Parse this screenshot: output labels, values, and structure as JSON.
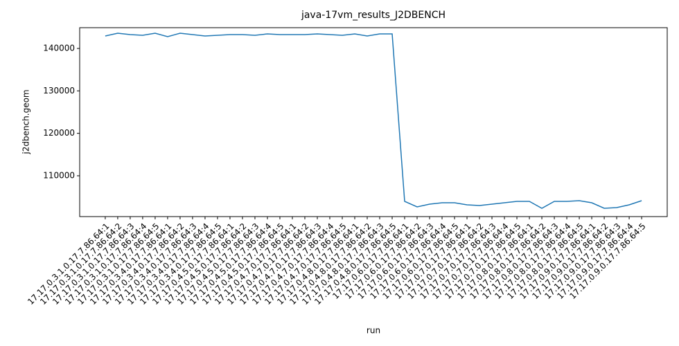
{
  "chart_data": {
    "type": "line",
    "title": "java-17vm_results_J2DBENCH",
    "x_label": "run",
    "y_label": "j2dbench.geom",
    "categories": [
      "17.17.0.3.1.0.17.7.86.64:1",
      "17.17.0.3.1.0.17.7.86.64:2",
      "17.17.0.3.1.0.17.7.86.64:3",
      "17.17.0.3.1.0.17.7.86.64:4",
      "17.17.0.3.1.0.17.7.86.64:5",
      "17.17.0.3.4.0.17.7.86.64:1",
      "17.17.0.3.4.0.17.7.86.64:2",
      "17.17.0.3.4.0.17.7.86.64:3",
      "17.17.0.3.4.0.17.7.86.64:4",
      "17.17.0.3.4.0.17.7.86.64:5",
      "17.17.0.4.5.0.17.7.86.64:1",
      "17.17.0.4.5.0.17.7.86.64:2",
      "17.17.0.4.5.0.17.7.86.64:3",
      "17.17.0.4.5.0.17.7.86.64:4",
      "17.17.0.4.5.0.17.7.86.64:5",
      "17.17.0.4.7.0.17.7.86.64:1",
      "17.17.0.4.7.0.17.7.86.64:2",
      "17.17.0.4.7.0.17.7.86.64:3",
      "17.17.0.4.7.0.17.7.86.64:4",
      "17.17.0.4.7.0.17.7.86.64:5",
      "17.17.0.4.8.0.17.7.86.64:1",
      "17.17.0.4.8.0.17.7.86.64:2",
      "17.17.0.4.8.0.17.7.86.64:3",
      "17.17.0.4.8.0.17.7.86.64:5",
      "17.17.0.6.0.17.7.86.64:1",
      "17.17.0.6.0.17.7.86.64:2",
      "17.17.0.6.0.17.7.86.64:3",
      "17.17.0.6.0.17.7.86.64:4",
      "17.17.0.6.0.17.7.86.64:5",
      "17.17.0.7.0.17.7.86.64:1",
      "17.17.0.7.0.17.7.86.64:2",
      "17.17.0.7.0.17.7.86.64:3",
      "17.17.0.7.0.17.7.86.64:4",
      "17.17.0.7.0.17.7.86.64:5",
      "17.17.0.8.0.17.7.86.64:1",
      "17.17.0.8.0.17.7.86.64:2",
      "17.17.0.8.0.17.7.86.64:3",
      "17.17.0.8.0.17.7.86.64:4",
      "17.17.0.8.0.17.7.86.64:5",
      "17.17.0.9.0.17.7.86.64:1",
      "17.17.0.9.0.17.7.86.64:2",
      "17.17.0.9.0.17.7.86.64:3",
      "17.17.0.9.0.17.7.86.64:4",
      "17.17.0.9.0.17.7.86.64:5"
    ],
    "series": [
      {
        "name": "j2dbench.geom",
        "color": "#1f77b4",
        "values": [
          142935,
          143590,
          143260,
          143100,
          143590,
          142770,
          143590,
          143260,
          142935,
          143100,
          143260,
          143260,
          143100,
          143420,
          143260,
          143260,
          143260,
          143420,
          143260,
          143100,
          143420,
          142935,
          143420,
          143420,
          103970,
          102670,
          103310,
          103640,
          103640,
          103150,
          102990,
          103310,
          103640,
          103970,
          103970,
          102340,
          103970,
          103970,
          104130,
          103640,
          102340,
          102500,
          103150,
          104130
        ]
      }
    ],
    "ylim": [
      100380,
      144890
    ],
    "yticks": [
      110000,
      120000,
      130000,
      140000
    ]
  }
}
